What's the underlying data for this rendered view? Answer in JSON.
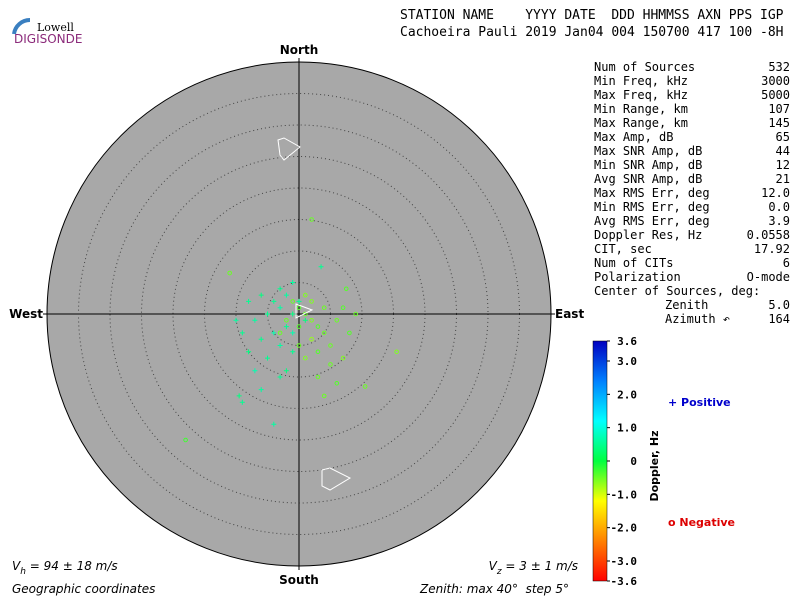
{
  "header": {
    "line1": "STATION NAME    YYYY DATE  DDD HHMMSS AXN PPS IGP",
    "line2": "Cachoeira Pauli 2019 Jan04 004 150700 417 100 -8H"
  },
  "logo": {
    "top": "Lowell",
    "bottom": "DIGISONDE"
  },
  "stats": [
    [
      "Num of Sources",
      "532"
    ],
    [
      "Min Freq, kHz",
      "3000"
    ],
    [
      "Max Freq, kHz",
      "5000"
    ],
    [
      "Min Range, km",
      "107"
    ],
    [
      "Max Range, km",
      "145"
    ],
    [
      "Max Amp, dB",
      "65"
    ],
    [
      "Max SNR Amp, dB",
      "44"
    ],
    [
      "Min SNR Amp, dB",
      "12"
    ],
    [
      "Avg SNR Amp, dB",
      "21"
    ],
    [
      "Max RMS Err, deg",
      "12.0"
    ],
    [
      "Min RMS Err, deg",
      "0.0"
    ],
    [
      "Avg RMS Err, deg",
      "3.9"
    ],
    [
      "Doppler Res, Hz",
      "0.0558"
    ],
    [
      "CIT, sec",
      "17.92"
    ],
    [
      "Num of CITs",
      "6"
    ],
    [
      "Polarization",
      "O-mode"
    ]
  ],
  "center_of_sources": {
    "title": "Center of Sources, deg:",
    "rows": [
      [
        "Zenith",
        "5.0"
      ],
      [
        "Azimuth ↶",
        "164"
      ]
    ]
  },
  "chart_data": {
    "type": "skymap",
    "directions": {
      "north": "North",
      "south": "South",
      "east": "East",
      "west": "West"
    },
    "zenith_max": 40,
    "zenith_step": 5,
    "zenith_label": {
      "prefix": "Zenith: max ",
      "unit": "°",
      "step_prefix": "  step "
    },
    "coordinates": "Geographic coordinates",
    "vh": {
      "symbol": "V",
      "sub": "h",
      "text": " = 94 ± 18 m/s"
    },
    "vz": {
      "symbol": "V",
      "sub": "z",
      "text": " = 3 ± 1 m/s"
    },
    "legend": {
      "positive": "+ Positive",
      "negative": "o Negative",
      "positive_color": "#0000cc",
      "negative_color": "#dd0000"
    },
    "background": "#a8a8a8",
    "colorbar": {
      "label": "Doppler, Hz",
      "lim": [
        -3.6,
        3.6
      ],
      "colors": [
        "#ff0000",
        "#ff8000",
        "#ffff00",
        "#00ff40",
        "#00ffff",
        "#0080ff",
        "#0000c0"
      ],
      "ticks": [
        3.6,
        {
          "value": 3,
          "label": "3.0"
        },
        {
          "value": 2,
          "label": "2.0"
        },
        {
          "value": 1,
          "label": "1.0"
        },
        0,
        {
          "value": -1,
          "label": "-1.0"
        },
        {
          "value": -2,
          "label": "-2.0"
        },
        {
          "value": -3,
          "label": "-3.0"
        },
        -3.6
      ]
    },
    "sources": [
      [
        2,
        15,
        -0.5
      ],
      [
        -11,
        6.5,
        -0.5
      ],
      [
        3.5,
        7.5,
        0.5
      ],
      [
        -18,
        -20,
        -0.3
      ],
      [
        15.5,
        -6,
        -0.6
      ],
      [
        10.5,
        -11.5,
        -0.5
      ],
      [
        7.5,
        4,
        -0.4
      ],
      [
        -4,
        -17.5,
        0.6
      ],
      [
        -9,
        -14,
        0.5
      ],
      [
        -9.5,
        -13,
        0.4
      ],
      [
        -6,
        -12,
        0.6
      ],
      [
        -3,
        -10,
        0.5
      ],
      [
        -2,
        -9,
        0.4
      ],
      [
        -7,
        -9,
        0.7
      ],
      [
        -5,
        -7,
        0.5
      ],
      [
        -8,
        -6,
        0.4
      ],
      [
        -3,
        -5,
        0.6
      ],
      [
        -1,
        -6,
        0.5
      ],
      [
        -6,
        -4,
        0.5
      ],
      [
        -4,
        -3,
        0.7
      ],
      [
        -2,
        -2,
        0.5
      ],
      [
        -7,
        -1,
        0.6
      ],
      [
        -5,
        0,
        0.5
      ],
      [
        -3,
        1,
        0.6
      ],
      [
        -1,
        0,
        0.4
      ],
      [
        -4,
        2,
        0.5
      ],
      [
        -2,
        3,
        0.6
      ],
      [
        0,
        2,
        0.5
      ],
      [
        -6,
        3,
        0.4
      ],
      [
        -3,
        4,
        0.5
      ],
      [
        -1,
        5,
        0.6
      ],
      [
        1,
        -1,
        0.4
      ],
      [
        -9,
        -3,
        0.5
      ],
      [
        -10,
        -1,
        0.6
      ],
      [
        -8,
        2,
        0.5
      ],
      [
        -1,
        -3,
        0.7
      ],
      [
        0,
        1,
        -0.4
      ],
      [
        1,
        0,
        -0.5
      ],
      [
        2,
        -1,
        -0.6
      ],
      [
        3,
        -2,
        -0.4
      ],
      [
        4,
        -3,
        -0.5
      ],
      [
        2,
        -4,
        -0.7
      ],
      [
        5,
        -5,
        -0.5
      ],
      [
        3,
        -6,
        -0.4
      ],
      [
        1,
        -7,
        -0.6
      ],
      [
        6,
        -1,
        -0.5
      ],
      [
        7,
        1,
        -0.4
      ],
      [
        4,
        1,
        -0.5
      ],
      [
        2,
        2,
        -0.6
      ],
      [
        -1,
        2,
        -0.5
      ],
      [
        0,
        -2,
        -0.4
      ],
      [
        5,
        -8,
        -0.5
      ],
      [
        3,
        -10,
        -0.5
      ],
      [
        7,
        -7,
        -0.6
      ],
      [
        8,
        -3,
        -0.4
      ],
      [
        9,
        0,
        -0.5
      ],
      [
        -2,
        -1,
        -0.5
      ],
      [
        1,
        3,
        -0.6
      ],
      [
        -3,
        -3,
        -0.5
      ],
      [
        0,
        -5,
        -0.5
      ],
      [
        6,
        -11,
        -0.4
      ],
      [
        4,
        -13,
        -0.5
      ]
    ]
  }
}
